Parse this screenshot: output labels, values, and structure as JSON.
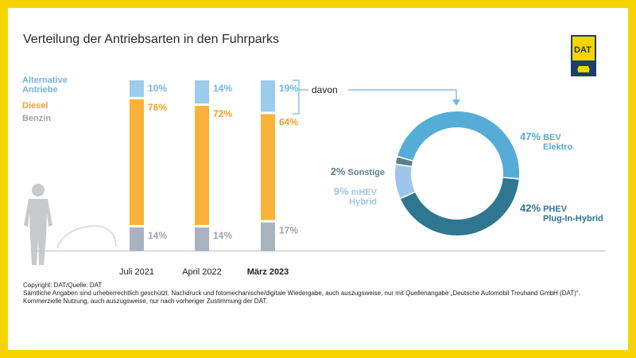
{
  "title": "Verteilung der Antriebsarten in den Fuhrparks",
  "legend": {
    "alternative": "Alternative Antriebe",
    "diesel": "Diesel",
    "benzin": "Benzin"
  },
  "davon_label": "davon",
  "logo_text": "DAT",
  "colors": {
    "alternative": "#9ccbec",
    "diesel": "#f9b23a",
    "benzin": "#a8b3bf",
    "legend_alt": "#72b6e3",
    "legend_diesel": "#f0a128",
    "legend_benzin": "#9aa5b1",
    "donut_bev": "#55acd6",
    "donut_phev": "#2f7791",
    "donut_mhev": "#9dc6ea",
    "donut_sonstige": "#5f7e8d",
    "logo_yellow": "#f6d400",
    "logo_navy": "#1e3c6e"
  },
  "chart_data": [
    {
      "type": "bar",
      "stacked": true,
      "categories": [
        "Juli 2021",
        "April 2022",
        "März 2023"
      ],
      "series": [
        {
          "name": "Benzin",
          "values": [
            14,
            14,
            17
          ],
          "labels": [
            "14%",
            "14%",
            "17%"
          ]
        },
        {
          "name": "Diesel",
          "values": [
            76,
            72,
            64
          ],
          "labels": [
            "76%",
            "72%",
            "64%"
          ]
        },
        {
          "name": "Alternative Antriebe",
          "values": [
            10,
            14,
            19
          ],
          "labels": [
            "10%",
            "14%",
            "19%"
          ]
        }
      ],
      "ylim": [
        0,
        100
      ]
    },
    {
      "type": "pie",
      "donut": true,
      "slices": [
        {
          "key": "bev",
          "pct": 47,
          "pct_label": "47%",
          "line1": "BEV",
          "line2": "Elektro"
        },
        {
          "key": "phev",
          "pct": 42,
          "pct_label": "42%",
          "line1": "PHEV",
          "line2": "Plug-In-Hybrid"
        },
        {
          "key": "mhev",
          "pct": 9,
          "pct_label": "9%",
          "line1": "mHEV",
          "line2": "Hybrid"
        },
        {
          "key": "sonstige",
          "pct": 2,
          "pct_label": "2%",
          "line1": "Sonstige",
          "line2": ""
        }
      ]
    }
  ],
  "footer": {
    "line1": "Copyright: DAT/Quelle: DAT",
    "line2": "Sämtliche Angaben sind urheberrechtlich geschützt. Nachdruck und fotomechanische/digitale Wiedergabe, auch auszugsweise, nur mit Quellenangabe „Deutsche Automobil Treuhand GmbH (DAT)“.",
    "line3": "Kommerzielle Nutzung, auch auszugsweise, nur nach vorheriger Zustimmung der DAT."
  }
}
